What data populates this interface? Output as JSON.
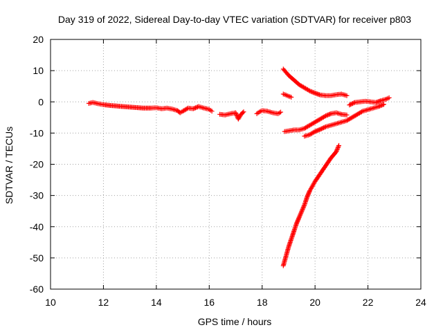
{
  "chart_data": {
    "type": "scatter",
    "title": "Day 319 of 2022, Sidereal Day-to-day VTEC variation (SDTVAR) for receiver p803",
    "xlabel": "GPS time / hours",
    "ylabel": "SDTVAR / TECUs",
    "xlim": [
      10,
      24
    ],
    "ylim": [
      -60,
      20
    ],
    "x_ticks": [
      10,
      12,
      14,
      16,
      18,
      20,
      22,
      24
    ],
    "y_ticks": [
      -60,
      -50,
      -40,
      -30,
      -20,
      -10,
      0,
      10,
      20
    ],
    "grid": true,
    "legend": "none",
    "marker": "plus",
    "color": "#ff0000",
    "series": [
      {
        "x": [
          11.45,
          11.6,
          11.8,
          12.0,
          12.3,
          12.6,
          12.9,
          13.2,
          13.5,
          13.8,
          14.0,
          14.2,
          14.4,
          14.6,
          14.8,
          14.9,
          15.0,
          15.2,
          15.4,
          15.6,
          15.8,
          16.0,
          16.1
        ],
        "y": [
          -0.5,
          -0.2,
          -0.6,
          -0.9,
          -1.2,
          -1.4,
          -1.6,
          -1.8,
          -2.0,
          -2.0,
          -1.9,
          -2.2,
          -2.0,
          -2.3,
          -2.8,
          -3.5,
          -3.0,
          -2.0,
          -2.2,
          -1.5,
          -2.0,
          -2.4,
          -3.0
        ]
      },
      {
        "x": [
          16.4,
          16.6,
          16.8,
          17.0,
          17.1,
          17.2,
          17.3
        ],
        "y": [
          -4.0,
          -4.2,
          -3.8,
          -3.5,
          -5.5,
          -4.0,
          -3.2
        ]
      },
      {
        "x": [
          17.8,
          17.9,
          18.0,
          18.2,
          18.4,
          18.6,
          18.7
        ],
        "y": [
          -3.8,
          -3.2,
          -2.8,
          -3.0,
          -3.5,
          -3.8,
          -3.3
        ]
      },
      {
        "x": [
          18.8,
          18.9,
          19.0,
          19.2,
          19.4,
          19.6,
          19.8,
          20.0,
          20.2,
          20.4,
          20.6,
          20.8,
          21.0,
          21.2
        ],
        "y": [
          10.5,
          9.5,
          8.5,
          7.0,
          5.5,
          4.5,
          3.5,
          2.8,
          2.2,
          2.0,
          2.0,
          2.3,
          2.5,
          2.0
        ]
      },
      {
        "x": [
          18.8,
          18.9,
          19.0,
          19.1
        ],
        "y": [
          2.5,
          2.2,
          1.8,
          1.5
        ]
      },
      {
        "x": [
          18.85,
          19.0,
          19.2,
          19.4,
          19.6,
          19.8,
          20.0,
          20.2,
          20.4,
          20.6,
          20.8,
          21.0,
          21.2
        ],
        "y": [
          -9.5,
          -9.3,
          -9.0,
          -9.0,
          -8.5,
          -7.5,
          -6.5,
          -5.5,
          -4.5,
          -3.8,
          -3.5,
          -4.0,
          -4.2
        ]
      },
      {
        "x": [
          19.6,
          19.8,
          20.0,
          20.2,
          20.4,
          20.6,
          20.8,
          21.0,
          21.2,
          21.4,
          21.6,
          21.8,
          22.0,
          22.2,
          22.4,
          22.6
        ],
        "y": [
          -11.0,
          -10.5,
          -9.5,
          -8.8,
          -8.0,
          -7.5,
          -7.0,
          -6.5,
          -6.0,
          -5.0,
          -4.0,
          -3.0,
          -2.5,
          -2.0,
          -1.5,
          -0.8
        ]
      },
      {
        "x": [
          21.3,
          21.5,
          21.7,
          21.9,
          22.1,
          22.3,
          22.5,
          22.7,
          22.8
        ],
        "y": [
          -1.0,
          -0.2,
          0.0,
          0.2,
          0.0,
          -0.2,
          0.4,
          0.9,
          1.3
        ]
      },
      {
        "x": [
          18.8,
          18.9,
          19.0,
          19.1,
          19.2,
          19.3,
          19.4,
          19.5,
          19.6,
          19.7,
          19.8,
          19.9,
          20.0,
          20.2,
          20.4,
          20.6,
          20.8,
          20.9
        ],
        "y": [
          -52.5,
          -49.5,
          -46.5,
          -44.0,
          -41.5,
          -39.0,
          -37.0,
          -35.0,
          -33.0,
          -30.5,
          -28.5,
          -27.0,
          -25.5,
          -23.0,
          -20.5,
          -18.0,
          -16.0,
          -14.0
        ]
      }
    ]
  }
}
